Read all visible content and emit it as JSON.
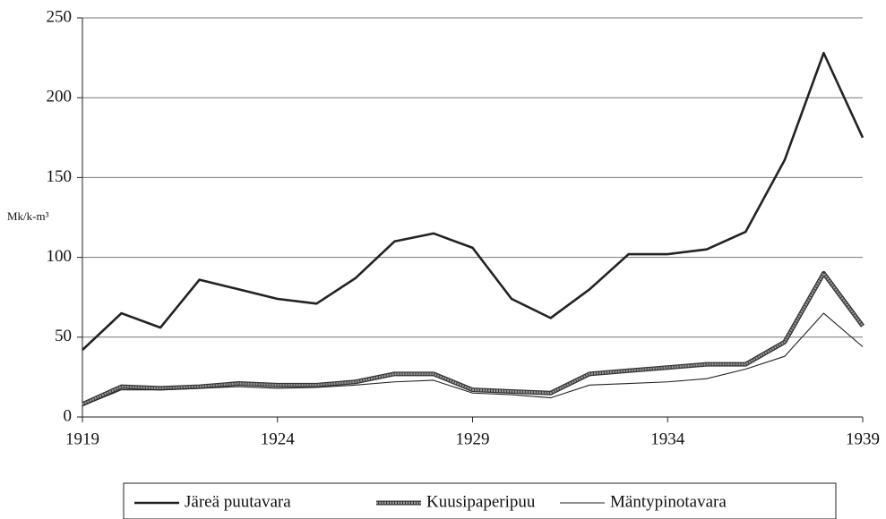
{
  "chart_data": {
    "type": "line",
    "y_label": "Mk/k-m³",
    "x": [
      1919,
      1920,
      1921,
      1922,
      1923,
      1924,
      1925,
      1926,
      1927,
      1928,
      1929,
      1930,
      1931,
      1932,
      1933,
      1934,
      1935,
      1936,
      1937,
      1938,
      1939
    ],
    "series": [
      {
        "name": "Järeä puutavara",
        "color": "#222222",
        "values": [
          42,
          65,
          56,
          86,
          80,
          74,
          71,
          87,
          110,
          115,
          106,
          74,
          62,
          80,
          102,
          102,
          105,
          116,
          161,
          228,
          175
        ]
      },
      {
        "name": "Kuusipaperipuu",
        "color": "#999999",
        "values": [
          8,
          19,
          18,
          19,
          21,
          20,
          20,
          22,
          27,
          27,
          17,
          16,
          15,
          27,
          29,
          31,
          33,
          33,
          47,
          90,
          57
        ]
      },
      {
        "name": "Mäntypinotavara",
        "color": "#222222",
        "values": [
          7,
          17,
          17,
          18,
          19,
          18,
          18.5,
          20,
          22,
          23,
          15,
          14,
          12,
          20,
          21,
          22,
          24,
          30,
          38,
          65,
          44
        ]
      }
    ],
    "xlim": [
      1919,
      1939
    ],
    "xticks": [
      1919,
      1924,
      1929,
      1934,
      1939
    ],
    "ylim": [
      0,
      250
    ],
    "yticks": [
      0,
      50,
      100,
      150,
      200,
      250
    ],
    "grid": true,
    "legend": "bottom"
  }
}
